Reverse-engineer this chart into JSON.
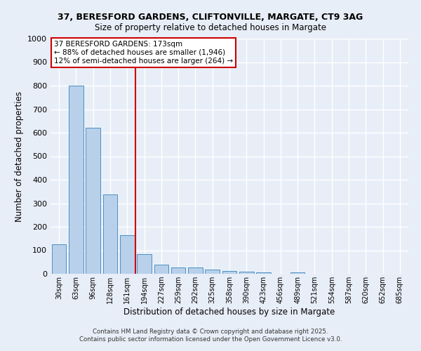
{
  "title1": "37, BERESFORD GARDENS, CLIFTONVILLE, MARGATE, CT9 3AG",
  "title2": "Size of property relative to detached houses in Margate",
  "xlabel": "Distribution of detached houses by size in Margate",
  "ylabel": "Number of detached properties",
  "categories": [
    "30sqm",
    "63sqm",
    "96sqm",
    "128sqm",
    "161sqm",
    "194sqm",
    "227sqm",
    "259sqm",
    "292sqm",
    "325sqm",
    "358sqm",
    "390sqm",
    "423sqm",
    "456sqm",
    "489sqm",
    "521sqm",
    "554sqm",
    "587sqm",
    "620sqm",
    "652sqm",
    "685sqm"
  ],
  "values": [
    125,
    800,
    620,
    338,
    163,
    83,
    40,
    27,
    26,
    18,
    13,
    8,
    5,
    0,
    5,
    0,
    0,
    0,
    0,
    0,
    0
  ],
  "bar_color": "#b8d0ea",
  "bar_edge_color": "#4a90c4",
  "vline_x_index": 4.5,
  "vline_color": "#cc0000",
  "annotation_title": "37 BERESFORD GARDENS: 173sqm",
  "annotation_line1": "← 88% of detached houses are smaller (1,946)",
  "annotation_line2": "12% of semi-detached houses are larger (264) →",
  "annotation_box_color": "#ffffff",
  "annotation_border_color": "#cc0000",
  "footer1": "Contains HM Land Registry data © Crown copyright and database right 2025.",
  "footer2": "Contains public sector information licensed under the Open Government Licence v3.0.",
  "background_color": "#e8eef7",
  "grid_color": "#ffffff",
  "ylim": [
    0,
    1000
  ],
  "yticks": [
    0,
    100,
    200,
    300,
    400,
    500,
    600,
    700,
    800,
    900,
    1000
  ]
}
